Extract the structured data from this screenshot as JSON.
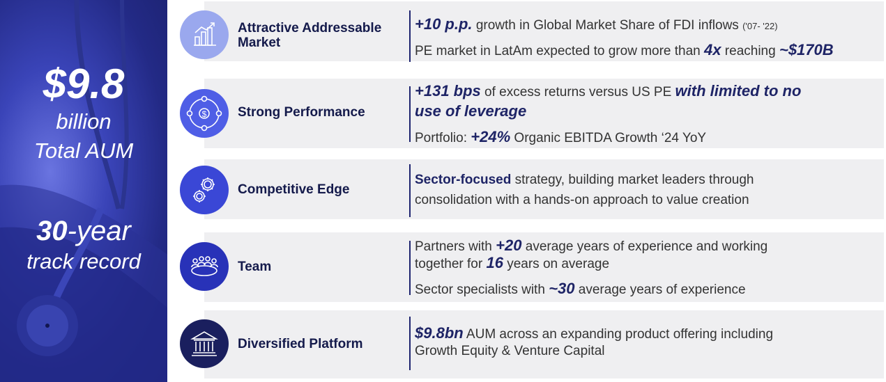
{
  "hero": {
    "aum_value": "$9.8",
    "aum_unit": "billion",
    "aum_label": "Total AUM",
    "years_number": "30",
    "years_suffix": "-year",
    "years_label": "track record"
  },
  "rows": [
    {
      "title": "Attractive Addressable Market",
      "icon": "bar-chart-icon",
      "l1_bold": "+10 p.p.",
      "l1_text": " growth in Global Market Share of FDI inflows ",
      "l1_small": "('07- '22)",
      "l2_text": "PE market in LatAm expected to grow more than ",
      "l2_bold": "4x",
      "l2_text2": " reaching ",
      "l2_bold2": "~$170B"
    },
    {
      "title": "Strong Performance",
      "icon": "dollar-cycle-icon",
      "l1_bold": "+131 bps",
      "l1_text": " of excess returns versus US PE ",
      "l1_bold2": "with limited to no",
      "l1b_bold": "use of leverage",
      "l2_text": "Portfolio: ",
      "l2_bold": "+24%",
      "l2_text2": " Organic EBITDA Growth ‘24 YoY"
    },
    {
      "title": "Competitive Edge",
      "icon": "gears-icon",
      "l1_bold": "Sector-focused",
      "l1_text": " strategy, building market leaders through",
      "l2_text": "consolidation with a hands-on approach to value creation"
    },
    {
      "title": "Team",
      "icon": "team-table-icon",
      "l1_text": "Partners with ",
      "l1_bold": "+20",
      "l1_text2": " average years of experience and working",
      "l1b_text": "together for ",
      "l1b_bold": "16",
      "l1b_text2": " years on average",
      "l2_text": "Sector specialists with ",
      "l2_bold": "~30",
      "l2_text2": " average years of experience"
    },
    {
      "title": "Diversified Platform",
      "icon": "bank-building-icon",
      "l1_bold": "$9.8bn",
      "l1_text": " AUM across an expanding product offering including",
      "l2_text": "Growth Equity & Venture Capital"
    }
  ],
  "colors": {
    "navy": "#1e2466",
    "row_bg": "#efeff1",
    "icon1": "#9aa8ee",
    "icon2": "#4f5ee6",
    "icon3": "#3a47d6",
    "icon4": "#2832b8",
    "icon5": "#1a1f5e"
  }
}
